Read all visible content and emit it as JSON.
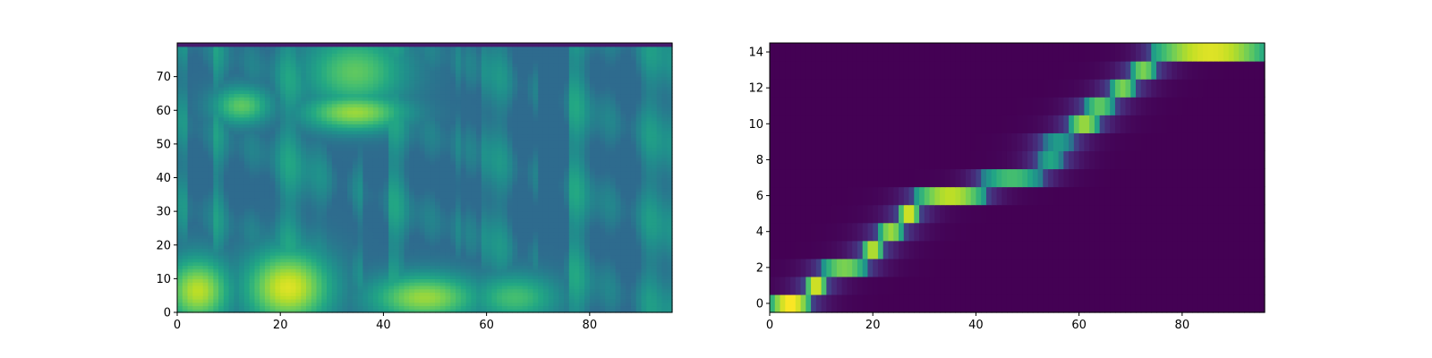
{
  "chart_data": [
    {
      "type": "heatmap",
      "colormap": "viridis",
      "x_range": [
        0,
        96
      ],
      "y_range": [
        0,
        80
      ],
      "xticks": [
        0,
        20,
        40,
        60,
        80
      ],
      "xtick_labels": [
        "0",
        "20",
        "40",
        "60",
        "80"
      ],
      "yticks": [
        0,
        10,
        20,
        30,
        40,
        50,
        60,
        70
      ],
      "ytick_labels": [
        "0",
        "10",
        "20",
        "30",
        "40",
        "50",
        "60",
        "70"
      ],
      "grid": false,
      "description_bands": [
        {
          "x": [
            0,
            7
          ],
          "y": [
            0,
            12
          ],
          "level": 0.9
        },
        {
          "x": [
            16,
            26
          ],
          "y": [
            0,
            14
          ],
          "level": 0.95
        },
        {
          "x": [
            41,
            54
          ],
          "y": [
            0,
            8
          ],
          "level": 0.85
        },
        {
          "x": [
            60,
            70
          ],
          "y": [
            0,
            8
          ],
          "level": 0.7
        },
        {
          "x": [
            28,
            40
          ],
          "y": [
            56,
            62
          ],
          "level": 0.85
        },
        {
          "x": [
            9,
            15
          ],
          "y": [
            58,
            64
          ],
          "level": 0.75
        },
        {
          "x": [
            28,
            40
          ],
          "y": [
            64,
            78
          ],
          "level": 0.75
        }
      ]
    },
    {
      "type": "heatmap",
      "colormap": "viridis",
      "x_range": [
        0,
        96
      ],
      "y_range": [
        -0.5,
        14.5
      ],
      "xticks": [
        0,
        20,
        40,
        60,
        80
      ],
      "xtick_labels": [
        "0",
        "20",
        "40",
        "60",
        "80"
      ],
      "yticks": [
        0,
        2,
        4,
        6,
        8,
        10,
        12,
        14
      ],
      "ytick_labels": [
        "0",
        "2",
        "4",
        "6",
        "8",
        "10",
        "12",
        "14"
      ],
      "grid": false,
      "alignment_path": [
        {
          "row": 0,
          "x_start": 0,
          "x_end": 7,
          "peak": 1.0
        },
        {
          "row": 1,
          "x_start": 7,
          "x_end": 10,
          "peak": 0.95
        },
        {
          "row": 2,
          "x_start": 10,
          "x_end": 18,
          "peak": 0.8
        },
        {
          "row": 3,
          "x_start": 18,
          "x_end": 21,
          "peak": 0.9
        },
        {
          "row": 4,
          "x_start": 21,
          "x_end": 25,
          "peak": 0.85
        },
        {
          "row": 5,
          "x_start": 25,
          "x_end": 28,
          "peak": 0.95
        },
        {
          "row": 6,
          "x_start": 28,
          "x_end": 41,
          "peak": 0.9
        },
        {
          "row": 7,
          "x_start": 41,
          "x_end": 52,
          "peak": 0.7
        },
        {
          "row": 8,
          "x_start": 52,
          "x_end": 56,
          "peak": 0.6
        },
        {
          "row": 9,
          "x_start": 53,
          "x_end": 58,
          "peak": 0.55
        },
        {
          "row": 10,
          "x_start": 58,
          "x_end": 63,
          "peak": 0.85
        },
        {
          "row": 11,
          "x_start": 61,
          "x_end": 66,
          "peak": 0.75
        },
        {
          "row": 12,
          "x_start": 66,
          "x_end": 70,
          "peak": 0.8
        },
        {
          "row": 13,
          "x_start": 70,
          "x_end": 74,
          "peak": 0.8
        },
        {
          "row": 14,
          "x_start": 74,
          "x_end": 96,
          "peak": 0.95
        }
      ]
    }
  ]
}
